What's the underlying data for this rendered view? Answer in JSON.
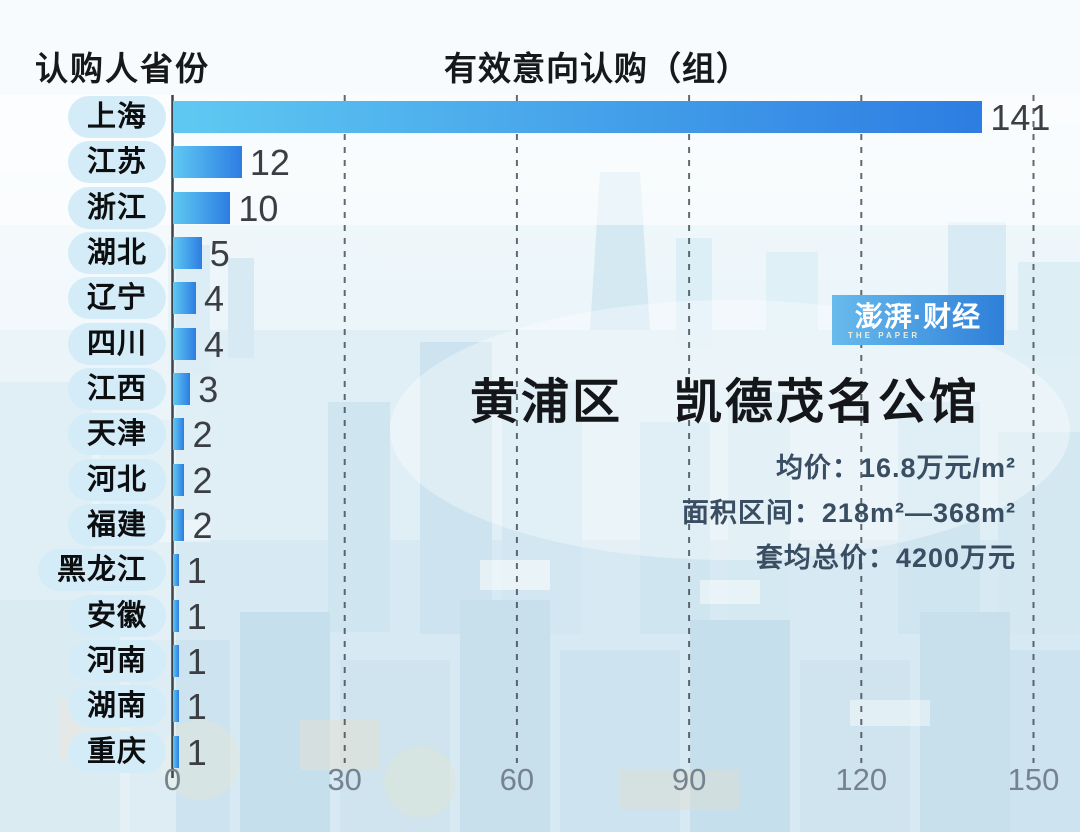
{
  "header": {
    "left_title": "认购人省份",
    "chart_title": "有效意向认购（组）"
  },
  "chart_data": {
    "type": "bar",
    "orientation": "horizontal",
    "title": "有效意向认购（组）",
    "ylabel": "认购人省份",
    "xlabel": "",
    "categories": [
      "上海",
      "江苏",
      "浙江",
      "湖北",
      "辽宁",
      "四川",
      "江西",
      "天津",
      "河北",
      "福建",
      "黑龙江",
      "安徽",
      "河南",
      "湖南",
      "重庆"
    ],
    "values": [
      141,
      12,
      10,
      5,
      4,
      4,
      3,
      2,
      2,
      2,
      1,
      1,
      1,
      1,
      1
    ],
    "xlim": [
      0,
      150
    ],
    "x_ticks": [
      0,
      30,
      60,
      90,
      120,
      150
    ],
    "grid": "vertical-dashed",
    "legend": "none"
  },
  "colors": {
    "bar_gradient_start": "#5fc9f2",
    "bar_gradient_end": "#2d7de2",
    "pill_bg": "#d3ecf8",
    "grid_line": "#3d454e",
    "axis_line": "#3c434b",
    "tick_text": "#76838f",
    "detail_text": "#3a4e63",
    "logo_gradient_start": "#68bbec",
    "logo_gradient_end": "#2e7fd9"
  },
  "logo": {
    "main": "澎湃·财经",
    "sub": "THE PAPER"
  },
  "info": {
    "property_title": "黄浦区　凯德茂名公馆",
    "details": [
      {
        "label": "均价：",
        "value": "16.8万元/m²"
      },
      {
        "label": "面积区间：",
        "value": "218m²—368m²"
      },
      {
        "label": "套均总价：",
        "value": "4200万元"
      }
    ]
  }
}
